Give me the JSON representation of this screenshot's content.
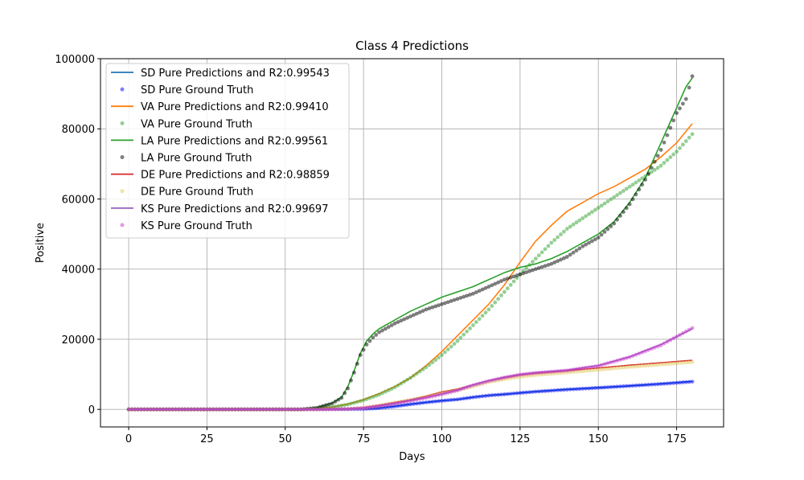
{
  "chart_data": {
    "type": "line",
    "title": "Class 4 Predictions",
    "xlabel": "Days",
    "ylabel": "Positive",
    "xlim": [
      -9,
      190
    ],
    "ylim": [
      -5000,
      100000
    ],
    "xticks": [
      0,
      25,
      50,
      75,
      100,
      125,
      150,
      175
    ],
    "yticks": [
      0,
      20000,
      40000,
      60000,
      80000,
      100000
    ],
    "grid": true,
    "legend_position": "upper-left",
    "series": [
      {
        "name": "SD Pure Predictions and R2:0.99543",
        "kind": "line",
        "color": "#1f77b4",
        "x": [
          0,
          50,
          60,
          70,
          75,
          80,
          85,
          90,
          95,
          100,
          105,
          110,
          115,
          120,
          125,
          130,
          140,
          150,
          160,
          170,
          180
        ],
        "y": [
          0,
          0,
          30,
          80,
          130,
          400,
          900,
          1500,
          2000,
          2500,
          2800,
          3500,
          4000,
          4300,
          4700,
          5100,
          5700,
          6200,
          6700,
          7300,
          8000
        ]
      },
      {
        "name": "SD Pure Ground Truth",
        "kind": "scatter",
        "color": "#0000ff",
        "x": [
          0,
          50,
          60,
          70,
          75,
          80,
          85,
          90,
          95,
          100,
          105,
          110,
          115,
          120,
          125,
          130,
          140,
          150,
          160,
          170,
          180
        ],
        "y": [
          0,
          0,
          25,
          70,
          120,
          350,
          850,
          1450,
          2000,
          2450,
          2850,
          3450,
          3950,
          4300,
          4700,
          5050,
          5650,
          6150,
          6700,
          7250,
          7900
        ]
      },
      {
        "name": "VA Pure Predictions and R2:0.99410",
        "kind": "line",
        "color": "#ff7f0e",
        "x": [
          0,
          55,
          60,
          65,
          70,
          75,
          80,
          85,
          90,
          95,
          100,
          105,
          110,
          115,
          120,
          125,
          130,
          135,
          140,
          145,
          150,
          155,
          160,
          165,
          170,
          175,
          180
        ],
        "y": [
          0,
          0,
          300,
          700,
          1500,
          2800,
          4500,
          6500,
          9000,
          12500,
          16500,
          21000,
          25500,
          30000,
          35500,
          42000,
          48000,
          52500,
          56500,
          59000,
          61500,
          63500,
          66000,
          68500,
          72000,
          76000,
          81500
        ]
      },
      {
        "name": "VA Pure Ground Truth",
        "kind": "scatter",
        "color": "#2ca02c",
        "x": [
          0,
          55,
          60,
          65,
          70,
          75,
          80,
          85,
          90,
          95,
          100,
          105,
          110,
          115,
          120,
          125,
          130,
          135,
          140,
          145,
          150,
          155,
          160,
          165,
          170,
          175,
          180
        ],
        "y": [
          0,
          0,
          250,
          650,
          1400,
          2600,
          4200,
          6300,
          9000,
          12000,
          15500,
          19500,
          24000,
          28500,
          33500,
          38500,
          43000,
          47500,
          51500,
          54500,
          57500,
          60500,
          63500,
          66500,
          69500,
          73500,
          78500
        ]
      },
      {
        "name": "LA Pure Predictions and R2:0.99561",
        "kind": "line",
        "color": "#2ca02c",
        "x": [
          0,
          55,
          60,
          65,
          68,
          70,
          72,
          74,
          76,
          78,
          80,
          85,
          90,
          95,
          100,
          105,
          110,
          115,
          120,
          125,
          130,
          135,
          140,
          145,
          150,
          155,
          160,
          165,
          170,
          175,
          178,
          180
        ],
        "y": [
          0,
          0,
          500,
          1800,
          3500,
          6500,
          11000,
          16000,
          19500,
          21500,
          23000,
          25500,
          28000,
          30000,
          32000,
          33500,
          35000,
          37000,
          39000,
          40500,
          41500,
          43000,
          45000,
          47500,
          50000,
          53500,
          59000,
          66000,
          76000,
          86000,
          92000,
          94500
        ]
      },
      {
        "name": "LA Pure Ground Truth",
        "kind": "scatter",
        "color": "#000000",
        "x": [
          0,
          55,
          60,
          65,
          68,
          70,
          72,
          74,
          76,
          78,
          80,
          85,
          90,
          95,
          100,
          105,
          110,
          115,
          120,
          125,
          130,
          135,
          140,
          145,
          150,
          155,
          160,
          165,
          170,
          175,
          178,
          180
        ],
        "y": [
          0,
          0,
          450,
          1700,
          3300,
          6000,
          10500,
          15500,
          18500,
          20500,
          22000,
          24500,
          26500,
          28500,
          30000,
          31500,
          33000,
          35000,
          37000,
          38500,
          40000,
          41500,
          43500,
          46500,
          49000,
          53000,
          58500,
          65500,
          74000,
          84500,
          88500,
          95000
        ]
      },
      {
        "name": "DE Pure Predictions and R2:0.98859",
        "kind": "line",
        "color": "#d62728",
        "x": [
          0,
          60,
          70,
          75,
          80,
          85,
          90,
          95,
          100,
          105,
          110,
          115,
          120,
          125,
          130,
          140,
          150,
          160,
          170,
          180
        ],
        "y": [
          0,
          0,
          150,
          500,
          1200,
          2000,
          2800,
          3800,
          5000,
          5800,
          7000,
          8200,
          9000,
          9800,
          10300,
          11000,
          11800,
          12600,
          13300,
          14000
        ]
      },
      {
        "name": "DE Pure Ground Truth",
        "kind": "scatter",
        "color": "#e2c85a",
        "x": [
          0,
          60,
          70,
          75,
          80,
          85,
          90,
          95,
          100,
          105,
          110,
          115,
          120,
          125,
          130,
          140,
          150,
          160,
          170,
          180
        ],
        "y": [
          0,
          0,
          130,
          450,
          1100,
          1900,
          2700,
          3600,
          4600,
          5500,
          6600,
          7800,
          8600,
          9300,
          9800,
          10500,
          11300,
          12100,
          12800,
          13500
        ]
      },
      {
        "name": "KS Pure Predictions and R2:0.99697",
        "kind": "line",
        "color": "#9467bd",
        "x": [
          0,
          60,
          70,
          75,
          80,
          85,
          90,
          95,
          100,
          105,
          110,
          115,
          120,
          125,
          130,
          140,
          150,
          160,
          170,
          180
        ],
        "y": [
          0,
          0,
          120,
          400,
          1000,
          1700,
          2500,
          3400,
          4400,
          5500,
          7000,
          8200,
          9200,
          10000,
          10500,
          11200,
          12500,
          15000,
          18500,
          23000
        ]
      },
      {
        "name": "KS Pure Ground Truth",
        "kind": "scatter",
        "color": "#cc33cc",
        "x": [
          0,
          60,
          70,
          75,
          80,
          85,
          90,
          95,
          100,
          105,
          110,
          115,
          120,
          125,
          130,
          140,
          150,
          160,
          170,
          180
        ],
        "y": [
          0,
          0,
          110,
          380,
          950,
          1650,
          2450,
          3300,
          4300,
          5400,
          6900,
          8100,
          9100,
          9900,
          10400,
          11100,
          12400,
          14900,
          18300,
          23200
        ]
      }
    ]
  }
}
